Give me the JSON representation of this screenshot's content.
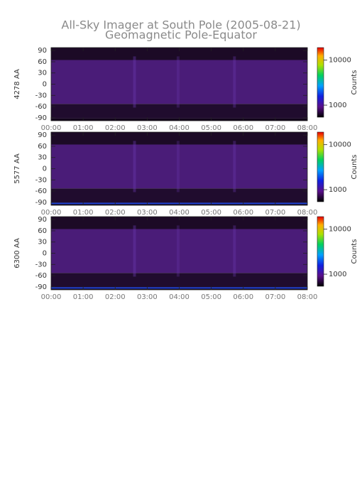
{
  "title": "All-Sky Imager at South Pole (2005-08-21)",
  "subtitle": "Geomagnetic Pole-Equator",
  "chart_data": [
    {
      "type": "heatmap",
      "ylabel": "4278 AA",
      "xlim": [
        0,
        8
      ],
      "xticks": [
        {
          "value": 0,
          "label": "00:00"
        },
        {
          "value": 1,
          "label": "01:00"
        },
        {
          "value": 2,
          "label": "02:00"
        },
        {
          "value": 3,
          "label": "03:00"
        },
        {
          "value": 4,
          "label": "04:00"
        },
        {
          "value": 5,
          "label": "05:00"
        },
        {
          "value": 6,
          "label": "06:00"
        },
        {
          "value": 7,
          "label": "07:00"
        },
        {
          "value": 8,
          "label": "08:00"
        }
      ],
      "ylim": [
        -98,
        98
      ],
      "yticks": [
        -90,
        -60,
        -30,
        0,
        30,
        60,
        90
      ],
      "colorbar": {
        "label": "Counts",
        "scale": "log",
        "lim": [
          540,
          19000
        ],
        "ticks": [
          1000,
          10000
        ]
      }
    },
    {
      "type": "heatmap",
      "ylabel": "5577 AA",
      "xlim": [
        0,
        8
      ],
      "xticks": [
        {
          "value": 0,
          "label": "00:00"
        },
        {
          "value": 1,
          "label": "01:00"
        },
        {
          "value": 2,
          "label": "02:00"
        },
        {
          "value": 3,
          "label": "03:00"
        },
        {
          "value": 4,
          "label": "04:00"
        },
        {
          "value": 5,
          "label": "05:00"
        },
        {
          "value": 6,
          "label": "06:00"
        },
        {
          "value": 7,
          "label": "07:00"
        },
        {
          "value": 8,
          "label": "08:00"
        }
      ],
      "ylim": [
        -98,
        98
      ],
      "yticks": [
        -90,
        -60,
        -30,
        0,
        30,
        60,
        90
      ],
      "colorbar": {
        "label": "Counts",
        "scale": "log",
        "lim": [
          540,
          19000
        ],
        "ticks": [
          1000,
          10000
        ]
      }
    },
    {
      "type": "heatmap",
      "ylabel": "6300 AA",
      "xlim": [
        0,
        8
      ],
      "xticks": [
        {
          "value": 0,
          "label": "00:00"
        },
        {
          "value": 1,
          "label": "01:00"
        },
        {
          "value": 2,
          "label": "02:00"
        },
        {
          "value": 3,
          "label": "03:00"
        },
        {
          "value": 4,
          "label": "04:00"
        },
        {
          "value": 5,
          "label": "05:00"
        },
        {
          "value": 6,
          "label": "06:00"
        },
        {
          "value": 7,
          "label": "07:00"
        },
        {
          "value": 8,
          "label": "08:00"
        }
      ],
      "ylim": [
        -98,
        98
      ],
      "yticks": [
        -90,
        -60,
        -30,
        0,
        30,
        60,
        90
      ],
      "colorbar": {
        "label": "Counts",
        "scale": "log",
        "lim": [
          540,
          19000
        ],
        "ticks": [
          1000,
          10000
        ]
      }
    }
  ]
}
